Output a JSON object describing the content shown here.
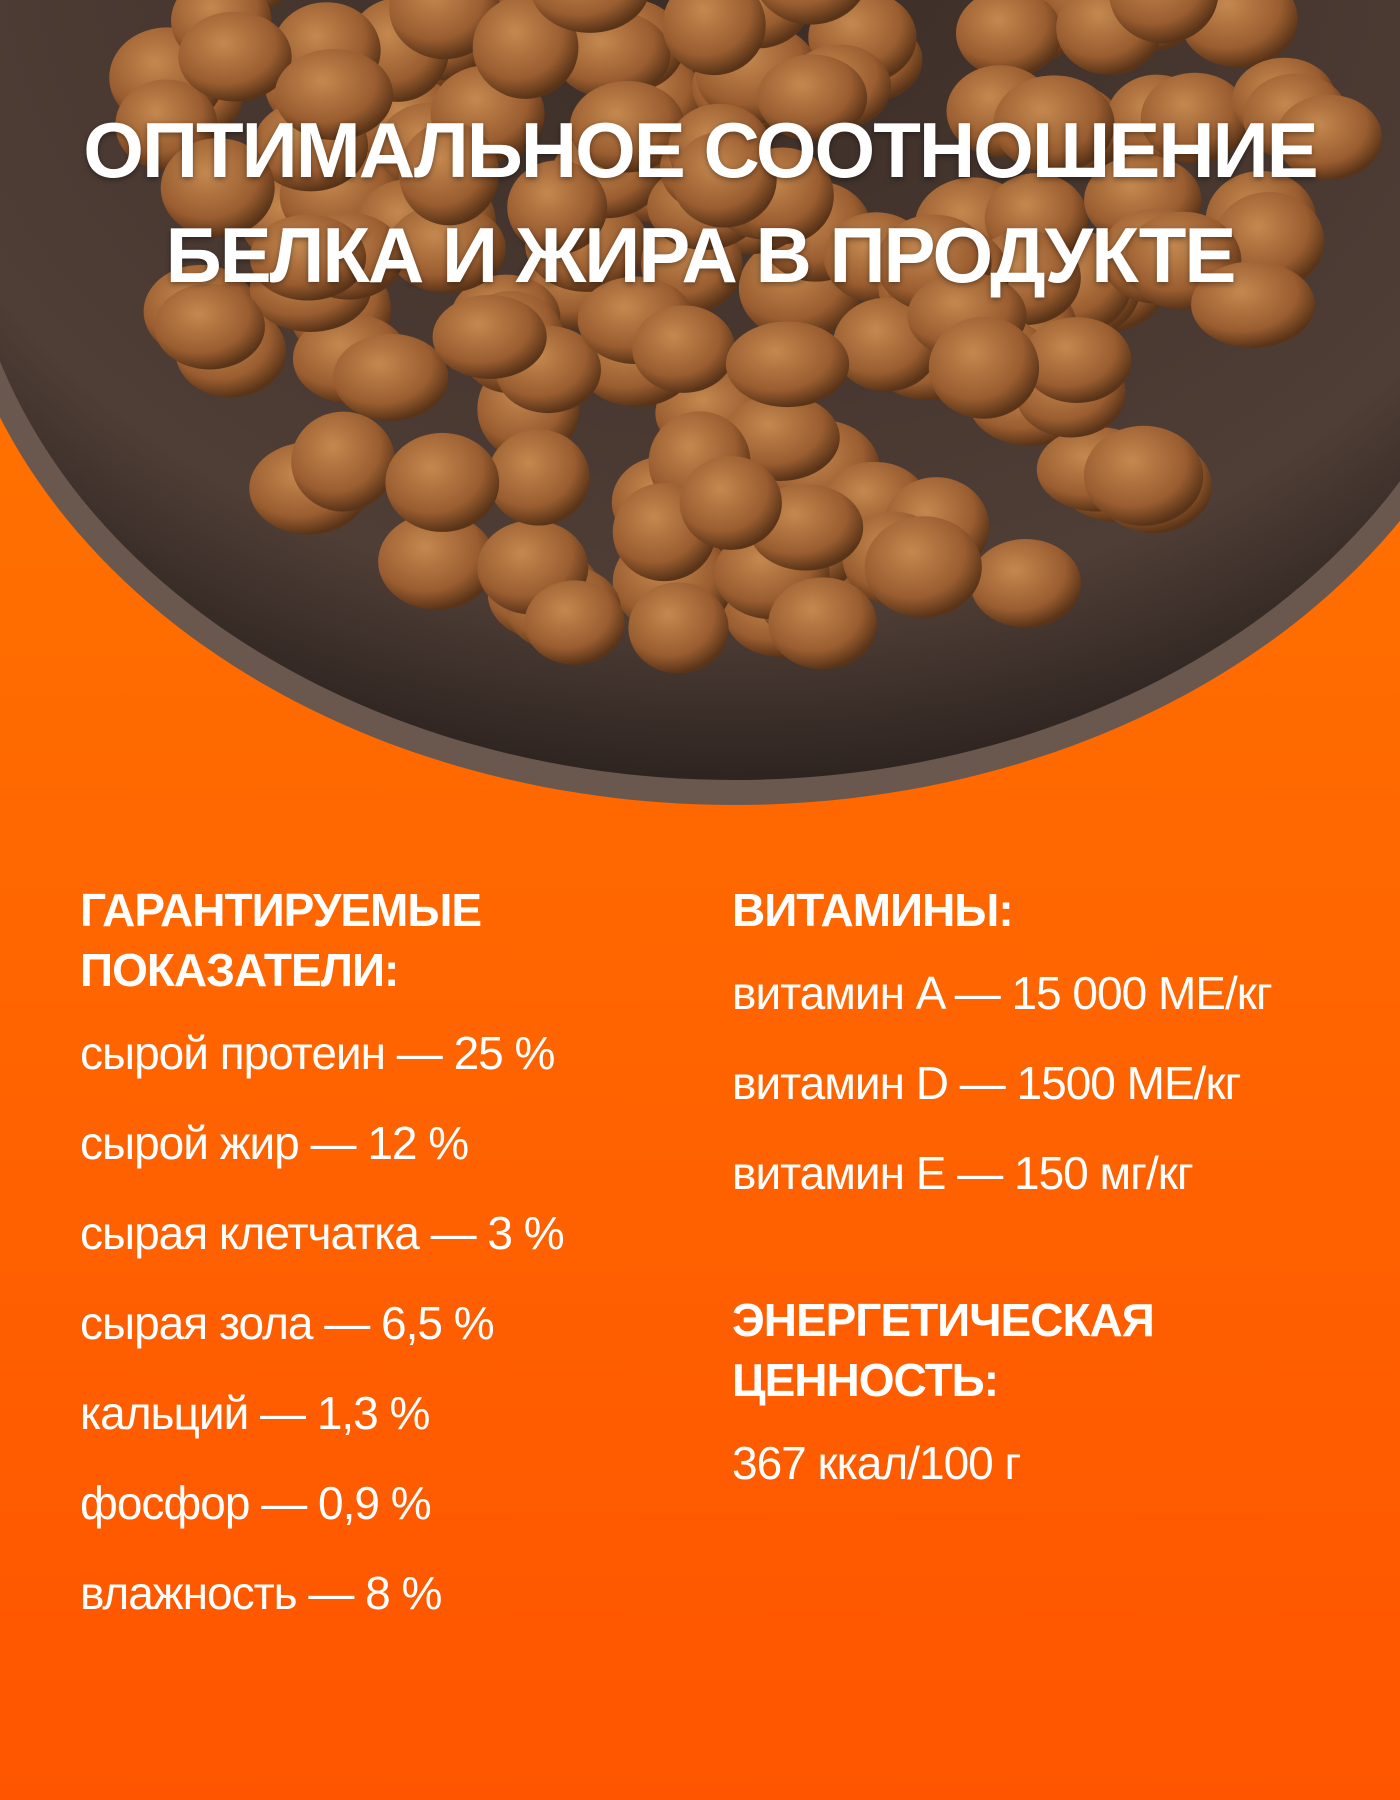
{
  "header": {
    "title_line1": "ОПТИМАЛЬНОЕ СООТНОШЕНИЕ",
    "title_line2": "БЕЛКА И ЖИРА В ПРОДУКТЕ"
  },
  "guaranteed": {
    "heading_line1": "ГАРАНТИРУЕМЫЕ",
    "heading_line2": "ПОКАЗАТЕЛИ:",
    "items": [
      "сырой протеин — 25 %",
      "сырой жир — 12 %",
      "сырая клетчатка — 3 %",
      "сырая зола — 6,5 %",
      "кальций — 1,3 %",
      "фосфор — 0,9 %",
      "влажность — 8 %"
    ]
  },
  "vitamins": {
    "heading": "ВИТАМИНЫ:",
    "items": [
      "витамин A — 15 000 МЕ/кг",
      "витамин D — 1500 МЕ/кг",
      "витамин E — 150 мг/кг"
    ]
  },
  "energy": {
    "heading_line1": "ЭНЕРГЕТИЧЕСКАЯ",
    "heading_line2": "ЦЕННОСТЬ:",
    "value": "367 ккал/100 г"
  },
  "colors": {
    "background": "#ff6000",
    "bowl": "#4a3a33",
    "kibble": "#a8683a"
  }
}
